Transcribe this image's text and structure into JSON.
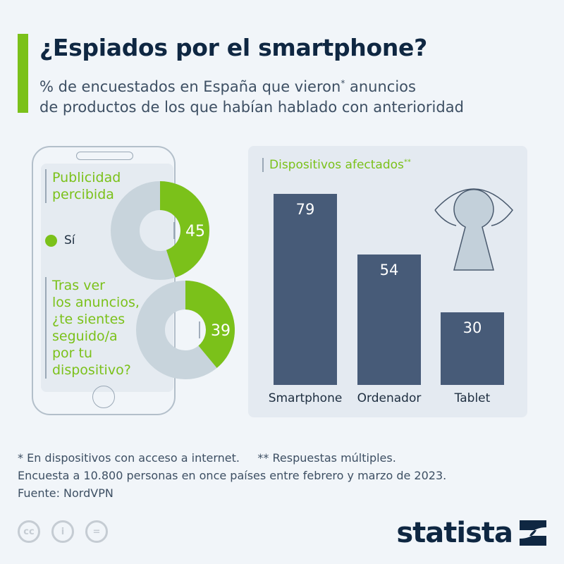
{
  "header": {
    "title": "¿Espiados por el smartphone?",
    "subtitle_line1": "% de encuestados en España que vieron",
    "subtitle_mark": "*",
    "subtitle_line1b": " anuncios",
    "subtitle_line2": "de productos de los que habían hablado con anterioridad"
  },
  "colors": {
    "accent": "#7bc11a",
    "donut_rest": "#c8d4dc",
    "bar": "#475b78",
    "title": "#0f2742"
  },
  "chart_data": [
    {
      "type": "pie",
      "variant": "donut",
      "title": "Publicidad percibida",
      "legend": [
        "Sí"
      ],
      "values": [
        45
      ],
      "unit": "%"
    },
    {
      "type": "pie",
      "variant": "donut",
      "title": "Tras ver los anuncios, ¿te sientes seguido/a por tu dispositivo?",
      "values": [
        39
      ],
      "unit": "%"
    },
    {
      "type": "bar",
      "title": "Dispositivos afectados**",
      "categories": [
        "Smartphone",
        "Ordenador",
        "Tablet"
      ],
      "values": [
        79,
        54,
        30
      ],
      "unit": "%"
    }
  ],
  "q1": {
    "line1": "Publicidad",
    "line2": "percibida"
  },
  "q2": {
    "lines": [
      "Tras ver",
      "los anuncios,",
      "¿te sientes",
      "seguido/a",
      "por tu",
      "dispositivo?"
    ]
  },
  "legend": {
    "yes": "Sí"
  },
  "bars": {
    "title": "Dispositivos afectados",
    "title_mark": "**"
  },
  "notes": {
    "line1a": "* En dispositivos con acceso a internet.",
    "line1b": "** Respuestas múltiples.",
    "line2": "Encuesta a 10.800 personas en once países entre febrero y marzo de 2023.",
    "line3": "Fuente: NordVPN"
  },
  "footer": {
    "brand": "statista",
    "license_icons": [
      "cc-icon",
      "by-icon",
      "nd-icon"
    ]
  }
}
